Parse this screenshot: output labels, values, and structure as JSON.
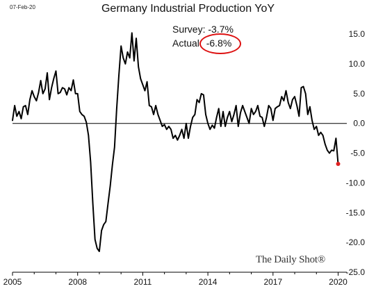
{
  "date_stamp": "07-Feb-20",
  "survey_label": "Survey:",
  "survey_value": "-3.7%",
  "actual_label": "Actual:",
  "actual_value": "-6.8%",
  "watermark": "The Daily Shot®",
  "colors": {
    "line": "#000000",
    "last_point": "#e02020",
    "highlight_circle": "#dd1111",
    "zero_line": "#000000",
    "axis": "#000000"
  },
  "chart_data": {
    "type": "line",
    "title": "Germany Industrial Production YoY",
    "xlim": [
      2005.0,
      2020.4
    ],
    "ylim": [
      -25,
      17
    ],
    "x_ticks": [
      2005,
      2008,
      2011,
      2014,
      2017,
      2020
    ],
    "x_tick_labels": [
      "2005",
      "2008",
      "2011",
      "2014",
      "2017",
      "2020"
    ],
    "y_ticks": [
      15,
      10,
      5,
      0,
      -5,
      -10,
      -15,
      -20,
      -25
    ],
    "y_tick_labels": [
      "15.0",
      "10.0",
      "5.0",
      "0.0",
      "-5.0",
      "-10.0",
      "-15.0",
      "-20.0",
      "-25.0"
    ],
    "y_axis_position": "right",
    "grid": false,
    "zero_line": true,
    "series": [
      {
        "x": [
          2005.0,
          2005.1,
          2005.2,
          2005.3,
          2005.4,
          2005.5,
          2005.6,
          2005.7,
          2005.8,
          2005.9,
          2006.0,
          2006.1,
          2006.2,
          2006.3,
          2006.4,
          2006.5,
          2006.6,
          2006.7,
          2006.8,
          2006.9,
          2007.0,
          2007.1,
          2007.2,
          2007.3,
          2007.4,
          2007.5,
          2007.6,
          2007.7,
          2007.8,
          2007.9,
          2008.0,
          2008.1,
          2008.2,
          2008.3,
          2008.4,
          2008.5,
          2008.6,
          2008.7,
          2008.8,
          2008.9,
          2009.0,
          2009.1,
          2009.2,
          2009.3,
          2009.4,
          2009.5,
          2009.6,
          2009.7,
          2009.8,
          2009.9,
          2010.0,
          2010.1,
          2010.2,
          2010.3,
          2010.4,
          2010.5,
          2010.6,
          2010.7,
          2010.8,
          2010.9,
          2011.0,
          2011.1,
          2011.2,
          2011.3,
          2011.4,
          2011.5,
          2011.6,
          2011.7,
          2011.8,
          2011.9,
          2012.0,
          2012.1,
          2012.2,
          2012.3,
          2012.4,
          2012.5,
          2012.6,
          2012.7,
          2012.8,
          2012.9,
          2013.0,
          2013.1,
          2013.2,
          2013.3,
          2013.4,
          2013.5,
          2013.6,
          2013.7,
          2013.8,
          2013.9,
          2014.0,
          2014.1,
          2014.2,
          2014.3,
          2014.4,
          2014.5,
          2014.6,
          2014.7,
          2014.8,
          2014.9,
          2015.0,
          2015.1,
          2015.2,
          2015.3,
          2015.4,
          2015.5,
          2015.6,
          2015.7,
          2015.8,
          2015.9,
          2016.0,
          2016.1,
          2016.2,
          2016.3,
          2016.4,
          2016.5,
          2016.6,
          2016.7,
          2016.8,
          2016.9,
          2017.0,
          2017.1,
          2017.2,
          2017.3,
          2017.4,
          2017.5,
          2017.6,
          2017.7,
          2017.8,
          2017.9,
          2018.0,
          2018.1,
          2018.2,
          2018.3,
          2018.4,
          2018.5,
          2018.6,
          2018.7,
          2018.8,
          2018.9,
          2019.0,
          2019.1,
          2019.2,
          2019.3,
          2019.4,
          2019.5,
          2019.6,
          2019.7,
          2019.8,
          2019.9,
          2020.0
        ],
        "y": [
          0.5,
          3.0,
          1.2,
          2.0,
          0.8,
          2.8,
          3.0,
          1.5,
          4.0,
          5.5,
          4.5,
          3.8,
          5.2,
          7.2,
          5.0,
          5.8,
          8.5,
          4.0,
          6.0,
          7.5,
          8.8,
          5.0,
          5.2,
          6.0,
          5.8,
          4.8,
          6.0,
          5.5,
          7.3,
          5.0,
          5.0,
          2.0,
          1.5,
          1.2,
          0.2,
          -2.0,
          -6.5,
          -13.5,
          -19.5,
          -21.0,
          -21.5,
          -18.0,
          -17.0,
          -16.5,
          -13.5,
          -10.5,
          -7.0,
          -4.0,
          2.5,
          8.0,
          13.0,
          11.0,
          10.0,
          12.0,
          11.0,
          15.2,
          10.5,
          14.3,
          9.5,
          7.5,
          6.5,
          5.5,
          7.0,
          3.0,
          2.8,
          1.5,
          3.0,
          1.5,
          0.5,
          -0.5,
          -0.2,
          -1.0,
          -0.5,
          -1.0,
          -2.5,
          -2.0,
          -2.8,
          -2.0,
          -1.0,
          -2.5,
          0.0,
          -2.5,
          -0.5,
          1.0,
          1.5,
          4.0,
          3.5,
          5.0,
          4.8,
          1.5,
          0.0,
          -1.0,
          -0.3,
          -0.8,
          1.0,
          2.5,
          -0.5,
          2.0,
          -0.5,
          1.0,
          2.0,
          0.3,
          1.5,
          3.0,
          -0.5,
          1.8,
          3.0,
          2.0,
          1.0,
          0.0,
          2.5,
          1.5,
          2.0,
          3.0,
          1.2,
          1.0,
          -0.5,
          1.0,
          3.0,
          2.5,
          0.5,
          2.5,
          2.8,
          3.0,
          4.5,
          3.8,
          5.5,
          3.5,
          2.5,
          4.0,
          4.5,
          3.0,
          1.2,
          6.0,
          6.2,
          5.0,
          1.5,
          2.8,
          0.5,
          -1.0,
          -0.5,
          -2.0,
          -1.5,
          -2.0,
          -3.5,
          -4.5,
          -5.0,
          -4.5,
          -4.6,
          -2.5,
          -6.8
        ]
      }
    ],
    "last_point": {
      "x": 2020.0,
      "y": -6.8
    }
  }
}
